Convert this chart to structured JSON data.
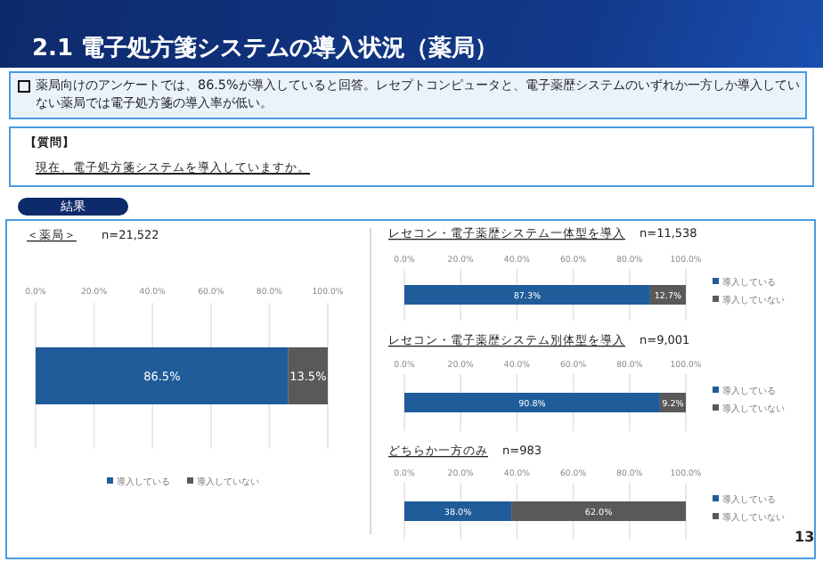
{
  "chart_data": [
    {
      "type": "bar",
      "orientation": "horizontal",
      "stacked": true,
      "title": "＜薬局＞",
      "subtitle": "n=21,522",
      "annotations": [
        "2.1 電子処方箋システムの導入状況（薬局）",
        "薬局向けのアンケートでは、86.5%が導入していると回答。レセプトコンピュータと、電子薬歴システムのいずれか一方しか導入していない薬局では電子処方箋の導入率が低い。",
        "【質問】",
        "現在、電子処方箋システムを導入していますか。",
        "結果",
        "13"
      ],
      "categories": [
        null
      ],
      "series": [
        {
          "name": "導入している",
          "color": "#1f5c99",
          "values": [
            86.5
          ],
          "value_labels": [
            "86.5%"
          ]
        },
        {
          "name": "導入していない",
          "color": "#595959",
          "values": [
            13.5
          ],
          "value_labels": [
            "13.5%"
          ]
        }
      ],
      "xlim": [
        0,
        100
      ],
      "xticks": [
        {
          "value": 0,
          "label": "0.0%"
        },
        {
          "value": 20,
          "label": "20.0%"
        },
        {
          "value": 40,
          "label": "40.0%"
        },
        {
          "value": 60,
          "label": "60.0%"
        },
        {
          "value": 80,
          "label": "80.0%"
        },
        {
          "value": 100,
          "label": "100.0%"
        }
      ],
      "grid": "x",
      "legend": "bottom"
    },
    {
      "type": "bar",
      "orientation": "horizontal",
      "stacked": true,
      "title": "レセコン・電子薬歴システム一体型を導入",
      "subtitle": "n=11,538",
      "categories": [
        null
      ],
      "series": [
        {
          "name": "導入している",
          "color": "#1f5c99",
          "values": [
            87.3
          ],
          "value_labels": [
            "87.3%"
          ]
        },
        {
          "name": "導入していない",
          "color": "#595959",
          "values": [
            12.7
          ],
          "value_labels": [
            "12.7%"
          ]
        }
      ],
      "xlim": [
        0,
        100
      ],
      "xticks": [
        {
          "value": 0,
          "label": "0.0%"
        },
        {
          "value": 20,
          "label": "20.0%"
        },
        {
          "value": 40,
          "label": "40.0%"
        },
        {
          "value": 60,
          "label": "60.0%"
        },
        {
          "value": 80,
          "label": "80.0%"
        },
        {
          "value": 100,
          "label": "100.0%"
        }
      ],
      "grid": "x",
      "legend": "right"
    },
    {
      "type": "bar",
      "orientation": "horizontal",
      "stacked": true,
      "title": "レセコン・電子薬歴システム別体型を導入",
      "subtitle": "n=9,001",
      "categories": [
        null
      ],
      "series": [
        {
          "name": "導入している",
          "color": "#1f5c99",
          "values": [
            90.8
          ],
          "value_labels": [
            "90.8%"
          ]
        },
        {
          "name": "導入していない",
          "color": "#595959",
          "values": [
            9.2
          ],
          "value_labels": [
            "9.2%"
          ]
        }
      ],
      "xlim": [
        0,
        100
      ],
      "xticks": [
        {
          "value": 0,
          "label": "0.0%"
        },
        {
          "value": 20,
          "label": "20.0%"
        },
        {
          "value": 40,
          "label": "40.0%"
        },
        {
          "value": 60,
          "label": "60.0%"
        },
        {
          "value": 80,
          "label": "80.0%"
        },
        {
          "value": 100,
          "label": "100.0%"
        }
      ],
      "grid": "x",
      "legend": "right"
    },
    {
      "type": "bar",
      "orientation": "horizontal",
      "stacked": true,
      "title": "どちらか一方のみ",
      "subtitle": "n=983",
      "categories": [
        null
      ],
      "series": [
        {
          "name": "導入している",
          "color": "#1f5c99",
          "values": [
            38.0
          ],
          "value_labels": [
            "38.0%"
          ]
        },
        {
          "name": "導入していない",
          "color": "#595959",
          "values": [
            62.0
          ],
          "value_labels": [
            "62.0%"
          ]
        }
      ],
      "xlim": [
        0,
        100
      ],
      "xticks": [
        {
          "value": 0,
          "label": "0.0%"
        },
        {
          "value": 20,
          "label": "20.0%"
        },
        {
          "value": 40,
          "label": "40.0%"
        },
        {
          "value": 60,
          "label": "60.0%"
        },
        {
          "value": 80,
          "label": "80.0%"
        },
        {
          "value": 100,
          "label": "100.0%"
        }
      ],
      "grid": "x",
      "legend": "right"
    }
  ]
}
